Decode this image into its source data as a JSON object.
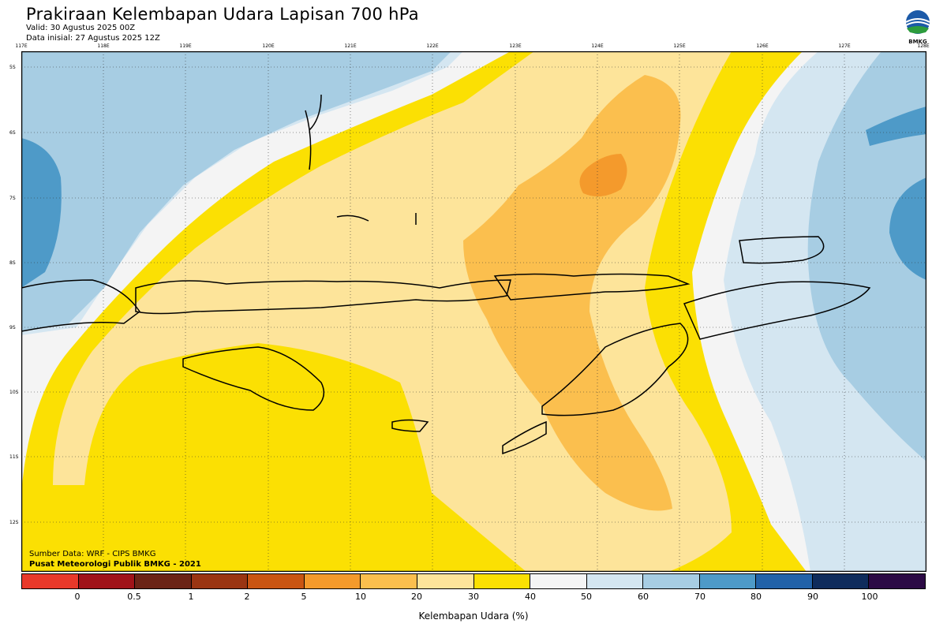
{
  "header": {
    "title": "Prakiraan Kelembapan Udara Lapisan 700 hPa",
    "valid": "Valid: 30 Agustus 2025 00Z",
    "init": "Data inisial: 27 Agustus 2025 12Z",
    "logo_text": "BMKG"
  },
  "axes": {
    "lon_labels": [
      "117E",
      "118E",
      "119E",
      "120E",
      "121E",
      "122E",
      "123E",
      "124E",
      "125E",
      "126E",
      "127E",
      "128E"
    ],
    "lat_labels": [
      "5S",
      "6S",
      "7S",
      "8S",
      "9S",
      "10S",
      "11S",
      "12S"
    ]
  },
  "footer": {
    "source": "Sumber Data: WRF - CIPS BMKG",
    "center": "Pusat Meteorologi Publik BMKG - 2021"
  },
  "legend": {
    "colors": [
      "#e8392a",
      "#a01319",
      "#6b2316",
      "#9a3512",
      "#c95512",
      "#f49a2c",
      "#fbbf4e",
      "#fde49a",
      "#fbe003",
      "#f4f4f4",
      "#d4e6f1",
      "#a7cde3",
      "#4e9ac8",
      "#2262a8",
      "#0f2c5c",
      "#2c0a45"
    ],
    "ticks": [
      "0",
      "0.5",
      "1",
      "2",
      "5",
      "10",
      "20",
      "30",
      "40",
      "50",
      "60",
      "70",
      "80",
      "90",
      "100"
    ],
    "label": "Kelembapan Udara (%)"
  },
  "palette": {
    "dry_yellow": "#fbe003",
    "light_yellow": "#fde49a",
    "orange": "#fbbf4e",
    "deep_orange": "#f49a2c",
    "white": "#f4f4f4",
    "pale_blue": "#d4e6f1",
    "light_blue": "#a7cde3",
    "mid_blue": "#4e9ac8"
  }
}
